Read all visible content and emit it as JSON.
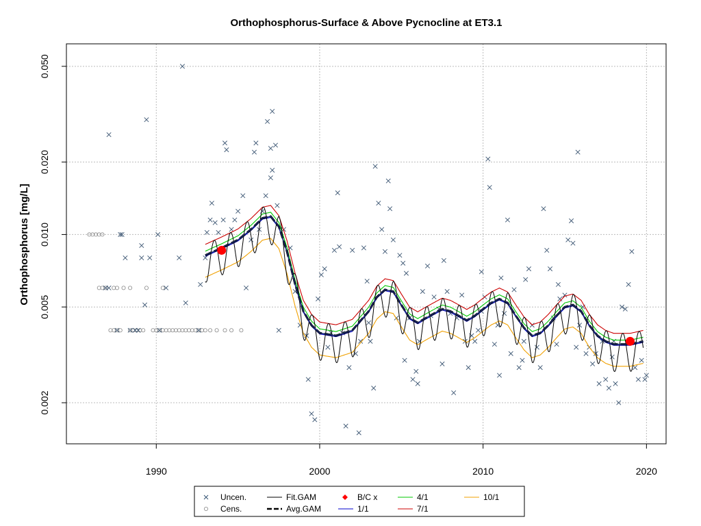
{
  "chart_data": {
    "type": "scatter",
    "title": "Orthophosphorus-Surface & Above Pycnocline at ET3.1",
    "xlabel": "",
    "ylabel": "Orthophosphorus [mg/L]",
    "xlim": [
      1984.5,
      2021.2
    ],
    "ylim": [
      0.00135,
      0.062
    ],
    "y_scale": "log",
    "grid": true,
    "x_ticks": [
      1990,
      2000,
      2010,
      2020
    ],
    "y_ticks": [
      0.002,
      0.005,
      0.01,
      0.02,
      0.05
    ],
    "x_tick_labels": [
      "1990",
      "2000",
      "2010",
      "2020"
    ],
    "y_tick_labels": [
      "0.002",
      "0.005",
      "0.010",
      "0.020",
      "0.050"
    ],
    "reference_line_y": 0.01,
    "legend": {
      "placement": "bottom",
      "entries": [
        {
          "label": "Uncen.",
          "symbol": "x",
          "color": "#2f4f6f"
        },
        {
          "label": "Cens.",
          "symbol": "circle",
          "color": "#888888"
        },
        {
          "label": "Fit.GAM",
          "symbol": "line",
          "color": "#000000"
        },
        {
          "label": "Avg.GAM",
          "symbol": "dash",
          "color": "#000000"
        },
        {
          "label": "B/C x",
          "symbol": "diamond",
          "color": "#ff0000"
        },
        {
          "label": "1/1",
          "symbol": "line",
          "color": "#0000cd"
        },
        {
          "label": "4/1",
          "symbol": "line",
          "color": "#00c800"
        },
        {
          "label": "7/1",
          "symbol": "line",
          "color": "#cc0000"
        },
        {
          "label": "10/1",
          "symbol": "line",
          "color": "#f0a000"
        }
      ]
    },
    "censored": [
      [
        1985.9,
        0.01
      ],
      [
        1986.1,
        0.01
      ],
      [
        1986.3,
        0.01
      ],
      [
        1986.5,
        0.01
      ],
      [
        1986.7,
        0.01
      ],
      [
        1986.5,
        0.006
      ],
      [
        1986.7,
        0.006
      ],
      [
        1986.9,
        0.006
      ],
      [
        1987.4,
        0.006
      ],
      [
        1987.6,
        0.006
      ],
      [
        1988.0,
        0.006
      ],
      [
        1988.4,
        0.006
      ],
      [
        1989.4,
        0.006
      ],
      [
        1990.4,
        0.006
      ],
      [
        1987.2,
        0.004
      ],
      [
        1987.4,
        0.004
      ],
      [
        1987.6,
        0.004
      ],
      [
        1987.8,
        0.004
      ],
      [
        1988.4,
        0.004
      ],
      [
        1988.6,
        0.004
      ],
      [
        1988.8,
        0.004
      ],
      [
        1989.0,
        0.004
      ],
      [
        1989.2,
        0.004
      ],
      [
        1989.8,
        0.004
      ],
      [
        1990.0,
        0.004
      ],
      [
        1990.2,
        0.004
      ],
      [
        1990.4,
        0.004
      ],
      [
        1990.6,
        0.004
      ],
      [
        1990.8,
        0.004
      ],
      [
        1991.0,
        0.004
      ],
      [
        1991.2,
        0.004
      ],
      [
        1991.4,
        0.004
      ],
      [
        1991.6,
        0.004
      ],
      [
        1991.8,
        0.004
      ],
      [
        1992.0,
        0.004
      ],
      [
        1992.2,
        0.004
      ],
      [
        1992.4,
        0.004
      ],
      [
        1992.6,
        0.004
      ],
      [
        1992.8,
        0.004
      ],
      [
        1993.0,
        0.004
      ],
      [
        1993.3,
        0.004
      ],
      [
        1993.7,
        0.004
      ],
      [
        1994.2,
        0.004
      ],
      [
        1994.6,
        0.004
      ],
      [
        1995.2,
        0.004
      ]
    ],
    "uncensored": [
      [
        1986.9,
        0.006
      ],
      [
        1987.1,
        0.006
      ],
      [
        1987.9,
        0.01
      ],
      [
        1987.1,
        0.026
      ],
      [
        1987.6,
        0.004
      ],
      [
        1987.8,
        0.01
      ],
      [
        1988.1,
        0.008
      ],
      [
        1988.4,
        0.004
      ],
      [
        1988.7,
        0.004
      ],
      [
        1988.9,
        0.004
      ],
      [
        1989.1,
        0.008
      ],
      [
        1989.4,
        0.03
      ],
      [
        1989.1,
        0.009
      ],
      [
        1989.6,
        0.008
      ],
      [
        1989.3,
        0.0051
      ],
      [
        1990.1,
        0.01
      ],
      [
        1990.2,
        0.004
      ],
      [
        1990.6,
        0.006
      ],
      [
        1991.4,
        0.008
      ],
      [
        1991.6,
        0.05
      ],
      [
        1991.8,
        0.0052
      ],
      [
        1992.6,
        0.004
      ],
      [
        1992.7,
        0.0062
      ],
      [
        1993.0,
        0.008
      ],
      [
        1993.1,
        0.0102
      ],
      [
        1993.3,
        0.0115
      ],
      [
        1993.4,
        0.0135
      ],
      [
        1993.6,
        0.0112
      ],
      [
        1993.8,
        0.0102
      ],
      [
        1994.1,
        0.0115
      ],
      [
        1994.2,
        0.024
      ],
      [
        1994.3,
        0.0225
      ],
      [
        1994.6,
        0.0105
      ],
      [
        1994.8,
        0.0115
      ],
      [
        1995.0,
        0.0125
      ],
      [
        1995.3,
        0.0145
      ],
      [
        1995.5,
        0.006
      ],
      [
        1995.8,
        0.0095
      ],
      [
        1996.0,
        0.022
      ],
      [
        1996.1,
        0.024
      ],
      [
        1996.3,
        0.0105
      ],
      [
        1996.5,
        0.0125
      ],
      [
        1996.7,
        0.0145
      ],
      [
        1996.8,
        0.0295
      ],
      [
        1997.0,
        0.0228
      ],
      [
        1997.1,
        0.0325
      ],
      [
        1997.3,
        0.0235
      ],
      [
        1997.1,
        0.0185
      ],
      [
        1997.0,
        0.0172
      ],
      [
        1997.4,
        0.0132
      ],
      [
        1997.5,
        0.004
      ],
      [
        1997.8,
        0.0105
      ],
      [
        1998.2,
        0.0088
      ],
      [
        1998.5,
        0.0058
      ],
      [
        1998.8,
        0.0042
      ],
      [
        1999.2,
        0.0038
      ],
      [
        1999.3,
        0.0025
      ],
      [
        1999.5,
        0.0018
      ],
      [
        1999.7,
        0.0017
      ],
      [
        1999.9,
        0.0054
      ],
      [
        2000.1,
        0.0068
      ],
      [
        2000.3,
        0.0072
      ],
      [
        2000.5,
        0.0034
      ],
      [
        2000.7,
        0.0039
      ],
      [
        2000.9,
        0.0086
      ],
      [
        2001.1,
        0.0149
      ],
      [
        2001.2,
        0.0089
      ],
      [
        2001.4,
        0.0039
      ],
      [
        2001.6,
        0.0016
      ],
      [
        2001.8,
        0.0028
      ],
      [
        2002.0,
        0.0086
      ],
      [
        2002.2,
        0.0032
      ],
      [
        2002.4,
        0.0015
      ],
      [
        2002.5,
        0.0036
      ],
      [
        2002.7,
        0.0088
      ],
      [
        2002.9,
        0.0064
      ],
      [
        2003.1,
        0.0036
      ],
      [
        2003.3,
        0.0023
      ],
      [
        2003.4,
        0.0192
      ],
      [
        2003.6,
        0.0135
      ],
      [
        2003.8,
        0.0105
      ],
      [
        2004.0,
        0.0085
      ],
      [
        2004.2,
        0.0167
      ],
      [
        2004.3,
        0.0128
      ],
      [
        2004.5,
        0.0095
      ],
      [
        2004.7,
        0.0045
      ],
      [
        2004.9,
        0.0082
      ],
      [
        2005.1,
        0.0076
      ],
      [
        2005.3,
        0.0069
      ],
      [
        2005.5,
        0.0045
      ],
      [
        2005.7,
        0.0025
      ],
      [
        2005.9,
        0.0027
      ],
      [
        2006.1,
        0.0036
      ],
      [
        2006.3,
        0.0058
      ],
      [
        2006.6,
        0.0074
      ],
      [
        2006.8,
        0.0046
      ],
      [
        2007.0,
        0.0055
      ],
      [
        2007.3,
        0.0049
      ],
      [
        2007.5,
        0.0029
      ],
      [
        2007.6,
        0.0078
      ],
      [
        2007.8,
        0.0058
      ],
      [
        2008.0,
        0.0047
      ],
      [
        2008.2,
        0.0022
      ],
      [
        2008.4,
        0.0045
      ],
      [
        2008.7,
        0.0056
      ],
      [
        2008.9,
        0.0036
      ],
      [
        2009.1,
        0.0028
      ],
      [
        2009.3,
        0.0038
      ],
      [
        2009.5,
        0.0036
      ],
      [
        2009.7,
        0.004
      ],
      [
        2009.9,
        0.0048
      ],
      [
        2010.1,
        0.0055
      ],
      [
        2010.3,
        0.0206
      ],
      [
        2010.4,
        0.0157
      ],
      [
        2010.7,
        0.0035
      ],
      [
        2010.9,
        0.0042
      ],
      [
        2011.1,
        0.0066
      ],
      [
        2011.3,
        0.0047
      ],
      [
        2011.5,
        0.0115
      ],
      [
        2011.7,
        0.0032
      ],
      [
        2011.9,
        0.0059
      ],
      [
        2012.2,
        0.0028
      ],
      [
        2012.4,
        0.003
      ],
      [
        2012.6,
        0.0065
      ],
      [
        2012.8,
        0.0072
      ],
      [
        2013.0,
        0.0042
      ],
      [
        2013.3,
        0.0034
      ],
      [
        2013.5,
        0.0028
      ],
      [
        2013.7,
        0.0128
      ],
      [
        2013.9,
        0.0086
      ],
      [
        2014.1,
        0.0072
      ],
      [
        2014.3,
        0.0045
      ],
      [
        2014.5,
        0.0035
      ],
      [
        2014.7,
        0.0054
      ],
      [
        2015.0,
        0.0056
      ],
      [
        2015.2,
        0.0095
      ],
      [
        2015.4,
        0.0114
      ],
      [
        2015.5,
        0.0092
      ],
      [
        2015.7,
        0.0034
      ],
      [
        2015.9,
        0.0042
      ],
      [
        2016.1,
        0.005
      ],
      [
        2016.3,
        0.0032
      ],
      [
        2016.5,
        0.0034
      ],
      [
        2016.7,
        0.0029
      ],
      [
        2016.9,
        0.0032
      ],
      [
        2017.1,
        0.0024
      ],
      [
        2017.3,
        0.0036
      ],
      [
        2017.5,
        0.0025
      ],
      [
        2017.7,
        0.0023
      ],
      [
        2017.9,
        0.0031
      ],
      [
        2018.1,
        0.0024
      ],
      [
        2018.3,
        0.002
      ],
      [
        2018.5,
        0.005
      ],
      [
        2018.7,
        0.0049
      ],
      [
        2018.9,
        0.0062
      ],
      [
        2019.1,
        0.0085
      ],
      [
        2019.3,
        0.0028
      ],
      [
        2019.5,
        0.0025
      ],
      [
        2019.7,
        0.003
      ],
      [
        2019.9,
        0.0025
      ],
      [
        2020.0,
        0.0026
      ],
      [
        2015.8,
        0.022
      ],
      [
        2009.9,
        0.007
      ],
      [
        2014.6,
        0.0062
      ],
      [
        2018.0,
        0.0036
      ],
      [
        2012.5,
        0.0036
      ],
      [
        2011.0,
        0.0026
      ],
      [
        2006.0,
        0.0024
      ],
      [
        2005.2,
        0.003
      ],
      [
        2003.0,
        0.0043
      ]
    ],
    "avg_gam": [
      [
        1993.0,
        0.0082
      ],
      [
        1994.0,
        0.0088
      ],
      [
        1995.0,
        0.0095
      ],
      [
        1995.8,
        0.0105
      ],
      [
        1996.5,
        0.0117
      ],
      [
        1997.0,
        0.0119
      ],
      [
        1997.5,
        0.0108
      ],
      [
        1998.0,
        0.0085
      ],
      [
        1998.5,
        0.0062
      ],
      [
        1999.0,
        0.0048
      ],
      [
        1999.5,
        0.0042
      ],
      [
        2000.0,
        0.0039
      ],
      [
        2001.0,
        0.0038
      ],
      [
        2002.0,
        0.004
      ],
      [
        2003.0,
        0.0048
      ],
      [
        2003.5,
        0.0055
      ],
      [
        2004.0,
        0.0059
      ],
      [
        2004.5,
        0.0058
      ],
      [
        2005.0,
        0.0051
      ],
      [
        2005.5,
        0.0045
      ],
      [
        2006.0,
        0.0043
      ],
      [
        2006.5,
        0.0045
      ],
      [
        2007.0,
        0.0047
      ],
      [
        2007.5,
        0.0049
      ],
      [
        2008.0,
        0.0048
      ],
      [
        2008.5,
        0.0046
      ],
      [
        2009.0,
        0.0044
      ],
      [
        2009.5,
        0.0046
      ],
      [
        2010.0,
        0.0049
      ],
      [
        2010.5,
        0.0052
      ],
      [
        2011.0,
        0.0054
      ],
      [
        2011.5,
        0.0052
      ],
      [
        2012.0,
        0.0046
      ],
      [
        2012.5,
        0.0041
      ],
      [
        2013.0,
        0.0038
      ],
      [
        2013.5,
        0.0039
      ],
      [
        2014.0,
        0.0042
      ],
      [
        2014.5,
        0.0046
      ],
      [
        2015.0,
        0.005
      ],
      [
        2015.5,
        0.0051
      ],
      [
        2016.0,
        0.0048
      ],
      [
        2016.5,
        0.0042
      ],
      [
        2017.0,
        0.0038
      ],
      [
        2017.5,
        0.0036
      ],
      [
        2018.0,
        0.0035
      ],
      [
        2019.0,
        0.0035
      ],
      [
        2019.8,
        0.0036
      ]
    ],
    "seasonal": {
      "1/1": {
        "color": "#0000cd",
        "factor": 0.99
      },
      "4/1": {
        "color": "#00c800",
        "factor": 1.04
      },
      "7/1": {
        "color": "#cc0000",
        "factor": 1.11
      },
      "10/1": {
        "color": "#f0a000",
        "factor": 0.81
      }
    },
    "fit_gam_amplitude": 0.17,
    "bc_points": [
      [
        1994.0,
        0.0086
      ],
      [
        2019.0,
        0.0036
      ]
    ]
  }
}
